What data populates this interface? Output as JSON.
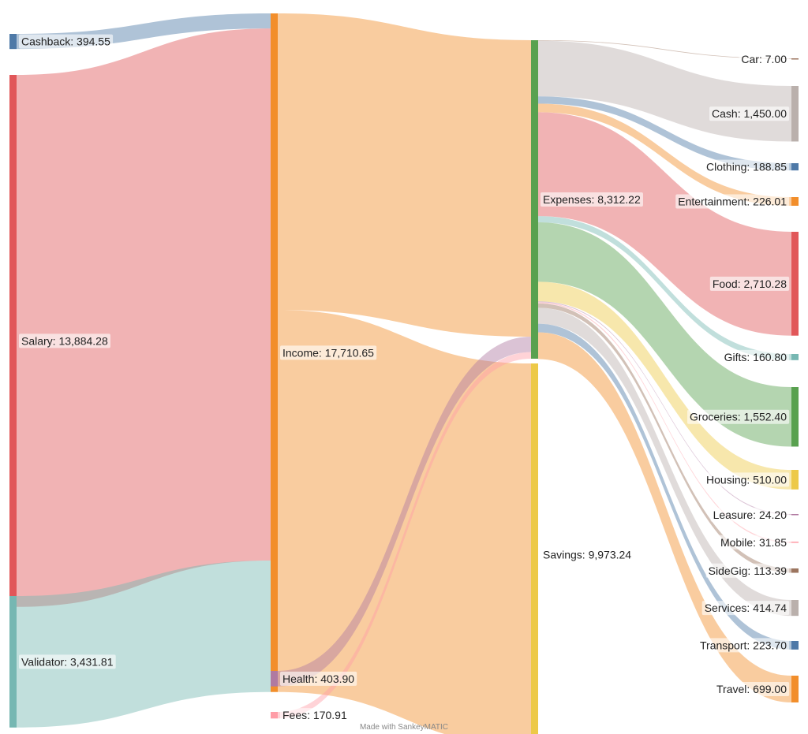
{
  "chart_data": {
    "type": "sankey",
    "credit": "Made with SankeyMATIC",
    "nodes": [
      {
        "id": "cashback",
        "label": "Cashback: 394.55",
        "value": 394.55,
        "color": "#4e79a7",
        "column": 0
      },
      {
        "id": "salary",
        "label": "Salary: 13,884.28",
        "value": 13884.28,
        "color": "#e15759",
        "column": 0
      },
      {
        "id": "validator",
        "label": "Validator: 3,431.81",
        "value": 3431.81,
        "color": "#76b7b2",
        "column": 0
      },
      {
        "id": "income",
        "label": "Income: 17,710.65",
        "value": 17710.65,
        "color": "#f28e2b",
        "column": 1
      },
      {
        "id": "health",
        "label": "Health: 403.90",
        "value": 403.9,
        "color": "#b07aa1",
        "column": 1
      },
      {
        "id": "fees",
        "label": "Fees: 170.91",
        "value": 170.91,
        "color": "#ff9da7",
        "column": 1
      },
      {
        "id": "expenses",
        "label": "Expenses: 8,312.22",
        "value": 8312.22,
        "color": "#59a14f",
        "column": 2
      },
      {
        "id": "savings",
        "label": "Savings: 9,973.24",
        "value": 9973.24,
        "color": "#edc948",
        "column": 2
      },
      {
        "id": "car",
        "label": "Car: 7.00",
        "value": 7.0,
        "color": "#9c755f",
        "column": 3
      },
      {
        "id": "cash",
        "label": "Cash: 1,450.00",
        "value": 1450.0,
        "color": "#bab0ac",
        "column": 3
      },
      {
        "id": "clothing",
        "label": "Clothing: 188.85",
        "value": 188.85,
        "color": "#4e79a7",
        "column": 3
      },
      {
        "id": "entertainment",
        "label": "Entertainment: 226.01",
        "value": 226.01,
        "color": "#f28e2b",
        "column": 3
      },
      {
        "id": "food",
        "label": "Food: 2,710.28",
        "value": 2710.28,
        "color": "#e15759",
        "column": 3
      },
      {
        "id": "gifts",
        "label": "Gifts: 160.80",
        "value": 160.8,
        "color": "#76b7b2",
        "column": 3
      },
      {
        "id": "groceries",
        "label": "Groceries: 1,552.40",
        "value": 1552.4,
        "color": "#59a14f",
        "column": 3
      },
      {
        "id": "housing",
        "label": "Housing: 510.00",
        "value": 510.0,
        "color": "#edc948",
        "column": 3
      },
      {
        "id": "leasure",
        "label": "Leasure: 24.20",
        "value": 24.2,
        "color": "#b07aa1",
        "column": 3
      },
      {
        "id": "mobile",
        "label": "Mobile: 31.85",
        "value": 31.85,
        "color": "#ff9da7",
        "column": 3
      },
      {
        "id": "sidegig",
        "label": "SideGig: 113.39",
        "value": 113.39,
        "color": "#9c755f",
        "column": 3
      },
      {
        "id": "services",
        "label": "Services: 414.74",
        "value": 414.74,
        "color": "#bab0ac",
        "column": 3
      },
      {
        "id": "transport",
        "label": "Transport: 223.70",
        "value": 223.7,
        "color": "#4e79a7",
        "column": 3
      },
      {
        "id": "travel",
        "label": "Travel: 699.00",
        "value": 699.0,
        "color": "#f28e2b",
        "column": 3
      }
    ],
    "links": [
      {
        "source": "cashback",
        "target": "income",
        "value": 394.55
      },
      {
        "source": "salary",
        "target": "income",
        "value": 13884.28
      },
      {
        "source": "validator",
        "target": "income",
        "value": 3431.81
      },
      {
        "source": "income",
        "target": "expenses",
        "value": 7737.41
      },
      {
        "source": "income",
        "target": "savings",
        "value": 9973.24
      },
      {
        "source": "health",
        "target": "expenses",
        "value": 403.9
      },
      {
        "source": "fees",
        "target": "expenses",
        "value": 170.91
      },
      {
        "source": "expenses",
        "target": "car",
        "value": 7.0
      },
      {
        "source": "expenses",
        "target": "cash",
        "value": 1450.0
      },
      {
        "source": "expenses",
        "target": "clothing",
        "value": 188.85
      },
      {
        "source": "expenses",
        "target": "entertainment",
        "value": 226.01
      },
      {
        "source": "expenses",
        "target": "food",
        "value": 2710.28
      },
      {
        "source": "expenses",
        "target": "gifts",
        "value": 160.8
      },
      {
        "source": "expenses",
        "target": "groceries",
        "value": 1552.4
      },
      {
        "source": "expenses",
        "target": "housing",
        "value": 510.0
      },
      {
        "source": "expenses",
        "target": "leasure",
        "value": 24.2
      },
      {
        "source": "expenses",
        "target": "mobile",
        "value": 31.85
      },
      {
        "source": "expenses",
        "target": "sidegig",
        "value": 113.39
      },
      {
        "source": "expenses",
        "target": "services",
        "value": 414.74
      },
      {
        "source": "expenses",
        "target": "transport",
        "value": 223.7
      },
      {
        "source": "expenses",
        "target": "travel",
        "value": 699.0
      }
    ]
  }
}
